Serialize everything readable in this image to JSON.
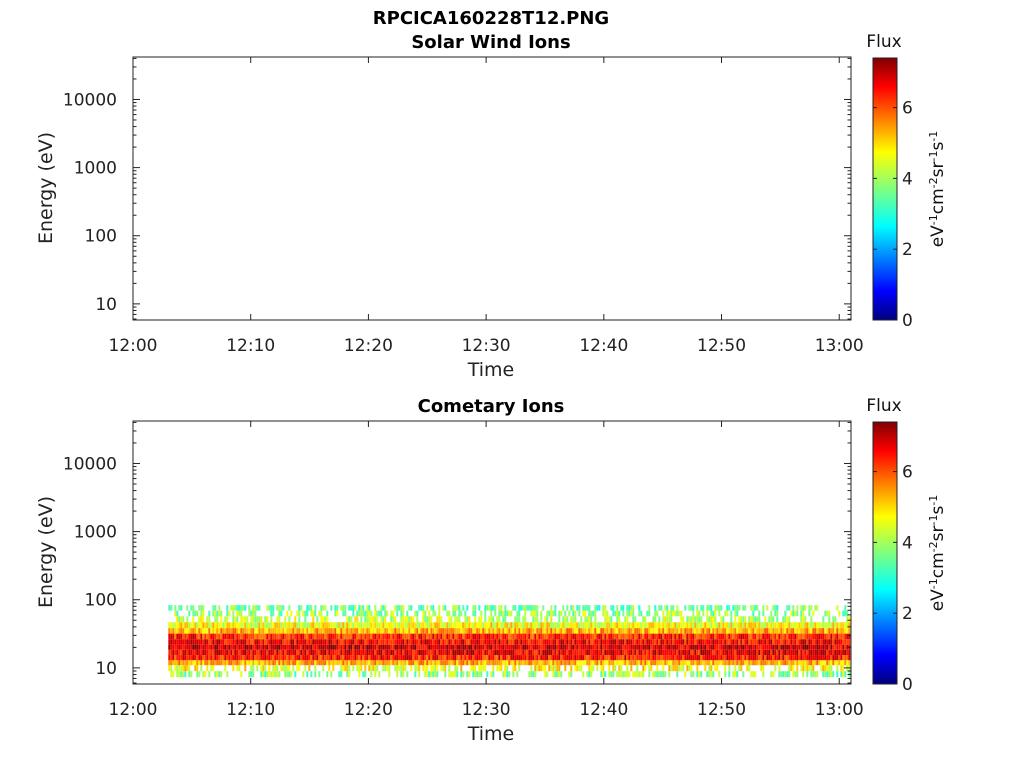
{
  "figure_title": "RPCICA160228T12.PNG",
  "colorbar": {
    "title": "Flux",
    "label": "eV-1cm-2sr-1s-1",
    "ticks": [
      "0",
      "2",
      "4",
      "6"
    ],
    "range": [
      0,
      7.4
    ],
    "colormap": "jet"
  },
  "chart_data": [
    {
      "type": "heatmap",
      "title": "Solar Wind Ions",
      "xlabel": "Time",
      "ylabel": "Energy (eV)",
      "x_ticks": [
        "12:00",
        "12:10",
        "12:20",
        "12:30",
        "12:40",
        "12:50",
        "13:00"
      ],
      "y_ticks": [
        "10",
        "100",
        "1000",
        "10000"
      ],
      "y_scale": "log",
      "xlim": [
        "12:00",
        "13:01"
      ],
      "ylim": [
        5.8,
        42000
      ],
      "grid": false,
      "data": "empty"
    },
    {
      "type": "heatmap",
      "title": "Cometary Ions",
      "xlabel": "Time",
      "ylabel": "Energy (eV)",
      "x_ticks": [
        "12:00",
        "12:10",
        "12:20",
        "12:30",
        "12:40",
        "12:50",
        "13:00"
      ],
      "y_ticks": [
        "10",
        "100",
        "1000",
        "10000"
      ],
      "y_scale": "log",
      "xlim": [
        "12:00",
        "13:01"
      ],
      "ylim": [
        5.8,
        42000
      ],
      "grid": false,
      "data_start": "12:03",
      "data_end": "13:01",
      "energy_profile": [
        {
          "energy": 8,
          "flux": 3.8
        },
        {
          "energy": 10,
          "flux": 4.6
        },
        {
          "energy": 12,
          "flux": 5.2
        },
        {
          "energy": 14,
          "flux": 6.3
        },
        {
          "energy": 17,
          "flux": 6.6
        },
        {
          "energy": 20,
          "flux": 6.8
        },
        {
          "energy": 24,
          "flux": 6.5
        },
        {
          "energy": 29,
          "flux": 6.2
        },
        {
          "energy": 35,
          "flux": 5.2
        },
        {
          "energy": 42,
          "flux": 4.6
        },
        {
          "energy": 52,
          "flux": 4.2
        },
        {
          "energy": 63,
          "flux": 3.9
        },
        {
          "energy": 76,
          "flux": 3.6
        }
      ]
    }
  ]
}
